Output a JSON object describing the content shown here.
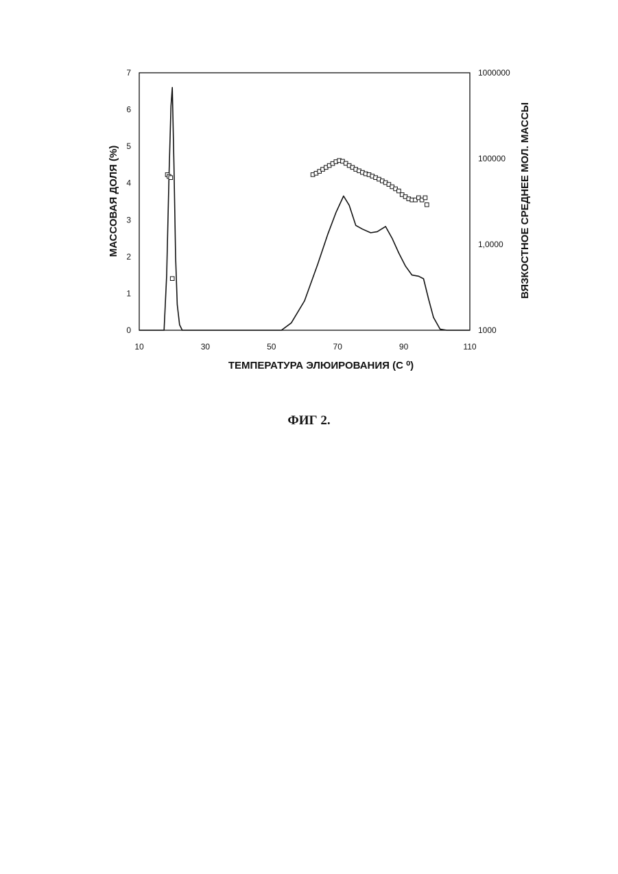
{
  "caption": "ФИГ 2.",
  "chart_data": {
    "type": "line",
    "xlabel": "ТЕМПЕРАТУРА ЭЛЮИРОВАНИЯ (С ⁰)",
    "ylabel": "МАССОВАЯ ДОЛЯ (%)",
    "y2label": "ВЯЗКОСТНОЕ СРЕДНЕЕ МОЛ. МАССЫ",
    "xlim": [
      10,
      110
    ],
    "ylim": [
      0,
      7
    ],
    "y2lim": [
      1000,
      1000000
    ],
    "y2scale": "log",
    "x_ticks": [
      "10",
      "30",
      "50",
      "70",
      "90",
      "110"
    ],
    "y_ticks": [
      "0",
      "1",
      "2",
      "3",
      "4",
      "5",
      "6",
      "7"
    ],
    "y2_ticks": [
      "1000",
      "1,0000",
      "100000",
      "1000000"
    ],
    "grid": false,
    "series": [
      {
        "axis": "left",
        "style": "line",
        "x": [
          10,
          17.5,
          18.3,
          19.0,
          19.6,
          20.0,
          20.5,
          21.0,
          21.5,
          22.2,
          23,
          53,
          56,
          60,
          64,
          67,
          69.5,
          71.8,
          73.5,
          75.5,
          77.5,
          80,
          82,
          84.5,
          86.5,
          88.5,
          90.5,
          92.5,
          94.5,
          96,
          97.5,
          99,
          101,
          103,
          110
        ],
        "y": [
          0,
          0,
          1.5,
          4.2,
          6.1,
          6.6,
          4.5,
          2.0,
          0.7,
          0.15,
          0,
          0,
          0.2,
          0.8,
          1.8,
          2.6,
          3.2,
          3.65,
          3.4,
          2.85,
          2.75,
          2.65,
          2.68,
          2.82,
          2.5,
          2.1,
          1.75,
          1.5,
          1.47,
          1.4,
          0.85,
          0.35,
          0.03,
          0,
          0
        ]
      },
      {
        "axis": "right",
        "style": "markers",
        "x": [
          18.5,
          19.0,
          19.5,
          20.0,
          62.5,
          63.5,
          64.5,
          65.5,
          66.5,
          67.5,
          68.5,
          69.5,
          70.5,
          71.5,
          72.5,
          73.5,
          74.5,
          75.5,
          76.5,
          77.5,
          78.5,
          79.5,
          80.5,
          81.5,
          82.5,
          83.5,
          84.5,
          85.5,
          86.5,
          87.5,
          88.5,
          89.5,
          90.5,
          91.5,
          92.5,
          93.5,
          94.5,
          95.5,
          96.5,
          97.0
        ],
        "y": [
          65000,
          62000,
          60000,
          4000,
          65000,
          67500,
          71000,
          75000,
          79000,
          83000,
          87500,
          92000,
          95000,
          93000,
          88000,
          83000,
          79000,
          75000,
          72000,
          69000,
          66500,
          65000,
          62500,
          60000,
          57500,
          55000,
          52500,
          50000,
          47000,
          44500,
          42000,
          38000,
          36000,
          34000,
          33000,
          33000,
          35000,
          33000,
          35000,
          29000
        ]
      }
    ]
  }
}
